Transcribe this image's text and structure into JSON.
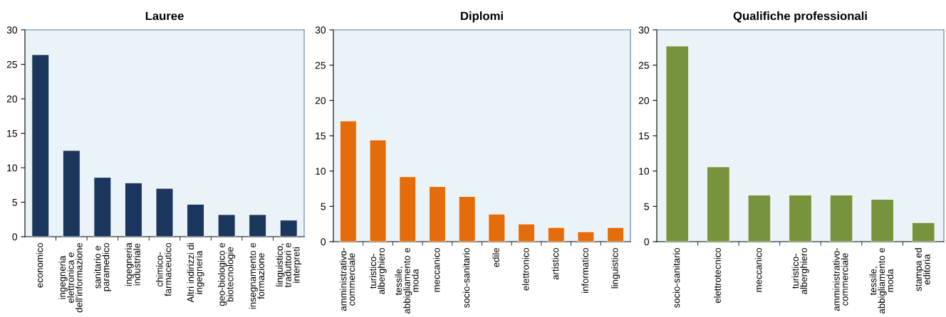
{
  "chart_data": [
    {
      "type": "bar",
      "title": "Lauree",
      "categories": [
        "economico",
        "ingegneria\nelettronica e\ndell'informazione",
        "sanitario e\nparamedico",
        "ingegneria\nindustriale",
        "chimico-\nfarmaceutico",
        "Altri indirizzi di\ningegneria",
        "geo-biologico e\nbiotecnologie",
        "insegnamento e\nformazione",
        "linguistico,\ntraduttori e\ninterpreti"
      ],
      "values": [
        26.4,
        12.5,
        8.6,
        7.8,
        7.0,
        4.7,
        3.2,
        3.2,
        2.4
      ],
      "color": "#1b365d",
      "ylim": [
        0,
        30
      ],
      "yticks": [
        0,
        5,
        10,
        15,
        20,
        25,
        30
      ],
      "grid": false,
      "legend": false
    },
    {
      "type": "bar",
      "title": "Diplomi",
      "categories": [
        "amministrativo-\ncommerciale",
        "turistico-\nalberghiero",
        "tessile,\nabbigliamento e\nmoda",
        "meccanico",
        "socio-sanitario",
        "edile",
        "elettronico",
        "artistico",
        "informatico",
        "linguistico"
      ],
      "values": [
        17.1,
        14.4,
        9.2,
        7.8,
        6.4,
        3.9,
        2.5,
        2.0,
        1.4,
        2.0
      ],
      "color": "#e46c0a",
      "ylim": [
        0,
        30
      ],
      "yticks": [
        0,
        5,
        10,
        15,
        20,
        25,
        30
      ],
      "grid": false,
      "legend": false
    },
    {
      "type": "bar",
      "title": "Qualifiche professionali",
      "categories": [
        "socio-sanitario",
        "elettrotecnico",
        "meccanico",
        "turistico-\nalberghiero",
        "amministrativo-\ncommerciale",
        "tessile,\nabbigliamento e\nmoda",
        "stampa ed\neditoria"
      ],
      "values": [
        27.7,
        10.6,
        6.6,
        6.6,
        6.6,
        6.0,
        2.7
      ],
      "color": "#77933c",
      "ylim": [
        0,
        30
      ],
      "yticks": [
        0,
        5,
        10,
        15,
        20,
        25,
        30
      ],
      "grid": false,
      "legend": false
    }
  ]
}
